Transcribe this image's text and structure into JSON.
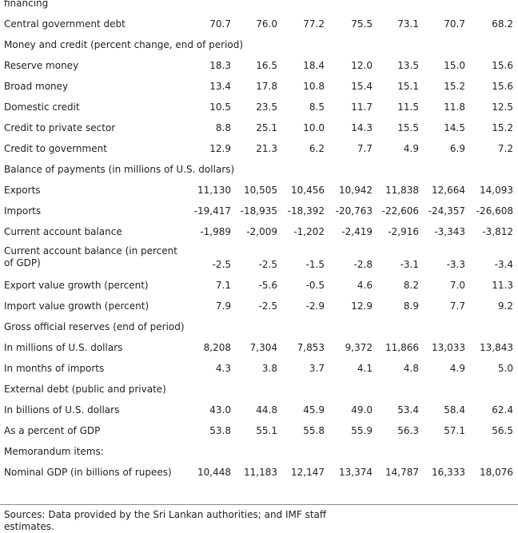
{
  "table": {
    "rows": [
      {
        "label": "financing",
        "values": [],
        "h": 16
      },
      {
        "label": "Central government debt",
        "values": [
          "70.7",
          "76.0",
          "77.2",
          "75.5",
          "73.1",
          "70.7",
          "68.2"
        ],
        "h": 26
      },
      {
        "label": "Money and credit (percent change, end of period)",
        "values": [],
        "h": 26
      },
      {
        "label": "Reserve money",
        "values": [
          "18.3",
          "16.5",
          "18.4",
          "12.0",
          "13.5",
          "15.0",
          "15.6"
        ],
        "h": 26
      },
      {
        "label": "Broad money",
        "values": [
          "13.4",
          "17.8",
          "10.8",
          "15.4",
          "15.1",
          "15.2",
          "15.6"
        ],
        "h": 26
      },
      {
        "label": "Domestic credit",
        "values": [
          "10.5",
          "23.5",
          "8.5",
          "11.7",
          "11.5",
          "11.8",
          "12.5"
        ],
        "h": 26
      },
      {
        "label": "Credit to private sector",
        "values": [
          "8.8",
          "25.1",
          "10.0",
          "14.3",
          "15.5",
          "14.5",
          "15.2"
        ],
        "h": 26
      },
      {
        "label": "Credit to government",
        "values": [
          "12.9",
          "21.3",
          "6.2",
          "7.7",
          "4.9",
          "6.9",
          "7.2"
        ],
        "h": 26
      },
      {
        "label": "Balance of payments (in millions of U.S. dollars)",
        "values": [],
        "h": 26
      },
      {
        "label": "Exports",
        "values": [
          "11,130",
          "10,505",
          "10,456",
          "10,942",
          "11,838",
          "12,664",
          "14,093"
        ],
        "h": 26
      },
      {
        "label": "Imports",
        "values": [
          "-19,417",
          "-18,935",
          "-18,392",
          "-20,763",
          "-22,606",
          "-24,357",
          "-26,608"
        ],
        "h": 26
      },
      {
        "label": "Current account balance",
        "values": [
          "-1,989",
          "-2,009",
          "-1,202",
          "-2,419",
          "-2,916",
          "-3,343",
          "-3,812"
        ],
        "h": 26
      },
      {
        "label": "Current account balance (in percent of GDP)",
        "values": [
          "-2.5",
          "-2.5",
          "-1.5",
          "-2.8",
          "-3.1",
          "-3.3",
          "-3.4"
        ],
        "h": 41,
        "wrap": true
      },
      {
        "label": "Export value growth (percent)",
        "values": [
          "7.1",
          "-5.6",
          "-0.5",
          "4.6",
          "8.2",
          "7.0",
          "11.3"
        ],
        "h": 26
      },
      {
        "label": "Import value growth (percent)",
        "values": [
          "7.9",
          "-2.5",
          "-2.9",
          "12.9",
          "8.9",
          "7.7",
          "9.2"
        ],
        "h": 26
      },
      {
        "label": "Gross official reserves (end of period)",
        "values": [],
        "h": 26
      },
      {
        "label": "In millions of U.S. dollars",
        "values": [
          "8,208",
          "7,304",
          "7,853",
          "9,372",
          "11,866",
          "13,033",
          "13,843"
        ],
        "h": 26
      },
      {
        "label": "In months of imports",
        "values": [
          "4.3",
          "3.8",
          "3.7",
          "4.1",
          "4.8",
          "4.9",
          "5.0"
        ],
        "h": 26
      },
      {
        "label": "External debt (public and private)",
        "values": [],
        "h": 26
      },
      {
        "label": "In billions of U.S. dollars",
        "values": [
          "43.0",
          "44.8",
          "45.9",
          "49.0",
          "53.4",
          "58.4",
          "62.4"
        ],
        "h": 26
      },
      {
        "label": "As a percent of GDP",
        "values": [
          "53.8",
          "55.1",
          "55.8",
          "55.9",
          "56.3",
          "57.1",
          "56.5"
        ],
        "h": 26
      },
      {
        "label": "Memorandum items:",
        "values": [],
        "h": 26
      },
      {
        "label": "Nominal GDP (in billions of rupees)",
        "values": [
          "10,448",
          "11,183",
          "12,147",
          "13,374",
          "14,787",
          "16,333",
          "18,076"
        ],
        "h": 26
      }
    ]
  },
  "footer": {
    "sources": "Sources: Data provided by the Sri Lankan authorities; and IMF staff estimates."
  }
}
